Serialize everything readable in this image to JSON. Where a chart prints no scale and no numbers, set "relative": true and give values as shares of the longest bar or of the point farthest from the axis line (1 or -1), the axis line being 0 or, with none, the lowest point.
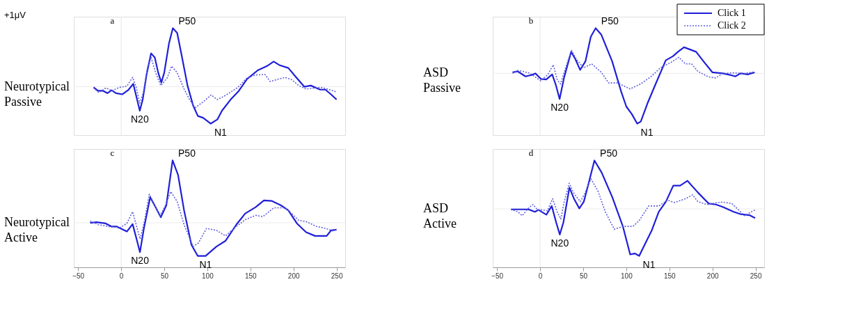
{
  "chart_data": [
    {
      "type": "line",
      "title": "Neurotypical Passive",
      "relative": true,
      "xlim": [
        -55,
        260
      ],
      "xticks": [
        -50,
        0,
        50,
        100,
        150,
        200,
        250
      ],
      "tick_labels": false,
      "grid": false,
      "legend": false,
      "annotations": [
        "+1μV",
        "a",
        {
          "text": "N20",
          "x": 21.6,
          "y": -0.41
        },
        {
          "text": "P50",
          "x": 60,
          "y": 1
        },
        {
          "text": "N1",
          "x": 104,
          "y": -0.63
        }
      ],
      "ref_lines": [
        {
          "axis": "x",
          "value": 0,
          "color": "#e6e6e6"
        }
      ],
      "series": [
        {
          "color": "#1f1fd8",
          "line_style": "solid",
          "x": [
            -32,
            -27,
            -21,
            -16,
            -11,
            -6,
            1.5,
            8.7,
            14,
            18,
            21.6,
            25,
            29.5,
            34.7,
            39,
            43,
            46.6,
            50,
            55.5,
            60,
            65,
            70,
            77,
            83.5,
            89,
            95,
            104,
            111.6,
            117,
            127,
            136.6,
            146,
            158.5,
            169,
            177,
            183.5,
            194,
            202,
            212.5,
            220,
            231,
            237,
            243.5,
            250
          ],
          "values": [
            -0.01,
            -0.07,
            -0.07,
            -0.11,
            -0.06,
            -0.11,
            -0.13,
            -0.05,
            0.05,
            -0.19,
            -0.41,
            -0.22,
            0.21,
            0.57,
            0.5,
            0.24,
            0.07,
            0.24,
            0.74,
            1,
            0.92,
            0.55,
            0.02,
            -0.32,
            -0.5,
            -0.53,
            -0.63,
            -0.56,
            -0.41,
            -0.22,
            -0.07,
            0.13,
            0.28,
            0.35,
            0.43,
            0.37,
            0.32,
            0.18,
            0,
            0.02,
            -0.05,
            -0.05,
            -0.13,
            -0.22
          ]
        },
        {
          "color": "#6060e0",
          "line_style": "dotted",
          "x": [
            -32,
            -26,
            -17.5,
            -11,
            -1.7,
            6.7,
            13.3,
            17.5,
            21.6,
            25.8,
            30.6,
            34.7,
            40,
            46,
            53.4,
            58.6,
            65,
            73,
            79.4,
            85.7,
            96,
            104.4,
            111.6,
            121,
            135.6,
            146,
            156,
            166.8,
            173,
            190,
            198,
            206,
            214.5,
            231,
            239.5,
            250
          ],
          "values": [
            -0.02,
            -0.1,
            -0.02,
            -0.07,
            -0.01,
            0.01,
            0.16,
            -0.01,
            -0.28,
            -0.1,
            0.33,
            0.5,
            0.24,
            0.02,
            0.15,
            0.35,
            0.24,
            -0.04,
            -0.22,
            -0.36,
            -0.25,
            -0.14,
            -0.22,
            -0.15,
            -0.01,
            0.15,
            0.2,
            0.21,
            0.09,
            0.16,
            0.12,
            0.02,
            -0.04,
            -0.01,
            -0.04,
            -0.09
          ]
        }
      ]
    },
    {
      "type": "line",
      "title": "ASD Passive",
      "relative": true,
      "xlim": [
        -55,
        260
      ],
      "xticks": [
        -50,
        0,
        50,
        100,
        150,
        200,
        250
      ],
      "tick_labels": false,
      "grid": false,
      "legend": "top right",
      "annotations": [
        "b",
        {
          "text": "N20",
          "x": 22.6,
          "y": -0.51
        },
        {
          "text": "P50",
          "x": 64.4,
          "y": 0.9
        },
        {
          "text": "N1",
          "x": 112.6,
          "y": -1
        }
      ],
      "ref_lines": [
        {
          "axis": "x",
          "value": 0,
          "color": "#e6e6e6"
        }
      ],
      "series": [
        {
          "name": "Click 1",
          "color": "#1f1fd8",
          "line_style": "solid",
          "x": [
            -32,
            -26,
            -17,
            -9.5,
            -5.4,
            0.8,
            7,
            14,
            18.4,
            22.6,
            27.7,
            36,
            41,
            46.4,
            52.6,
            58.8,
            64.4,
            71,
            83.6,
            94,
            100,
            106.4,
            112.6,
            116.8,
            125,
            133.3,
            145.8,
            154,
            160,
            167,
            181,
            189.6,
            200,
            212,
            220.3,
            226.5,
            232.6,
            241,
            249
          ],
          "values": [
            0.02,
            0.04,
            -0.06,
            -0.03,
            0,
            -0.11,
            -0.12,
            -0.02,
            -0.24,
            -0.51,
            -0.09,
            0.43,
            0.28,
            0.07,
            0.24,
            0.73,
            0.9,
            0.77,
            0.24,
            -0.36,
            -0.66,
            -0.81,
            -1,
            -0.96,
            -0.58,
            -0.24,
            0.26,
            0.34,
            0.43,
            0.52,
            0.43,
            0.24,
            0.02,
            0,
            -0.03,
            -0.06,
            0,
            -0.02,
            0.02
          ]
        },
        {
          "name": "Click 2",
          "color": "#6060e0",
          "line_style": "dotted",
          "x": [
            -32,
            -27,
            -20,
            -11.6,
            0.8,
            9,
            15.3,
            19.9,
            23.6,
            32,
            36.4,
            42,
            50.5,
            59.8,
            71,
            79.5,
            90,
            104.3,
            116.8,
            129,
            139.5,
            152,
            161,
            168.5,
            175.8,
            183,
            195.4,
            203.7,
            212,
            224.5,
            236.8,
            249
          ],
          "values": [
            0,
            0.06,
            0.04,
            0,
            -0.15,
            -0.02,
            0.17,
            -0.13,
            -0.21,
            0.24,
            0.46,
            0.28,
            0.11,
            0.19,
            0.02,
            -0.19,
            -0.19,
            -0.31,
            -0.21,
            -0.06,
            0.11,
            0.22,
            0.32,
            0.19,
            0.19,
            0.04,
            -0.07,
            -0.09,
            0,
            0.01,
            0,
            0.03
          ]
        }
      ]
    },
    {
      "type": "line",
      "title": "Neurotypical Active",
      "relative": true,
      "xlim": [
        -55,
        260
      ],
      "xticks": [
        -50,
        0,
        50,
        100,
        150,
        200,
        250
      ],
      "grid": false,
      "legend": false,
      "annotations": [
        "c",
        {
          "text": "N20",
          "x": 21.8,
          "y": -0.47
        },
        {
          "text": "P50",
          "x": 59.7,
          "y": 1
        },
        {
          "text": "N1",
          "x": 98,
          "y": -0.53
        }
      ],
      "ref_lines": [
        {
          "axis": "x",
          "value": 0,
          "color": "#e6e6e6"
        }
      ],
      "series": [
        {
          "color": "#1f1fd8",
          "line_style": "solid",
          "x": [
            -36,
            -28.5,
            -18,
            -11,
            -5,
            6.6,
            13.3,
            17.5,
            21.8,
            26.4,
            33.7,
            40,
            46,
            52.4,
            59.7,
            66,
            73,
            81.5,
            88.8,
            98,
            110.6,
            121,
            133.6,
            144,
            156,
            165.7,
            175,
            185.5,
            194,
            204,
            214.6,
            225,
            231,
            238.5,
            243.7,
            250
          ],
          "values": [
            0,
            0.01,
            -0.01,
            -0.06,
            -0.06,
            -0.14,
            -0.02,
            -0.24,
            -0.47,
            -0.09,
            0.41,
            0.25,
            0.09,
            0.28,
            1,
            0.77,
            0.2,
            -0.35,
            -0.53,
            -0.53,
            -0.38,
            -0.29,
            -0.03,
            0.15,
            0.25,
            0.36,
            0.35,
            0.28,
            0.2,
            -0.01,
            -0.15,
            -0.21,
            -0.21,
            -0.21,
            -0.12,
            -0.11
          ]
        },
        {
          "color": "#6060e0",
          "line_style": "dotted",
          "x": [
            -36,
            -26.6,
            -14,
            -1.7,
            6.6,
            13.3,
            18,
            22,
            27.4,
            32.6,
            38,
            45,
            52.4,
            57.6,
            65,
            73,
            83.6,
            89.8,
            99,
            110.6,
            121,
            133.6,
            144,
            156,
            164.6,
            177,
            189.6,
            198,
            206,
            214.6,
            227,
            235,
            245.7,
            250
          ],
          "values": [
            0.03,
            -0.03,
            -0.06,
            -0.08,
            -0.01,
            0.18,
            -0.06,
            -0.26,
            0.05,
            0.46,
            0.31,
            0.11,
            0.31,
            0.5,
            0.34,
            -0.03,
            -0.38,
            -0.32,
            -0.09,
            -0.12,
            -0.21,
            -0.06,
            0.05,
            0.12,
            0.1,
            0.24,
            0.24,
            0.15,
            0.04,
            0.02,
            -0.06,
            -0.08,
            -0.13,
            -0.11
          ]
        }
      ]
    },
    {
      "type": "line",
      "title": "ASD Active",
      "relative": true,
      "xlim": [
        -55,
        260
      ],
      "xticks": [
        -50,
        0,
        50,
        100,
        150,
        200,
        250
      ],
      "grid": false,
      "legend": false,
      "annotations": [
        "d",
        {
          "text": "N20",
          "x": 22.8,
          "y": -0.53
        },
        {
          "text": "P50",
          "x": 63,
          "y": 1
        },
        {
          "text": "N1",
          "x": 115,
          "y": -0.97
        }
      ],
      "ref_lines": [
        {
          "axis": "x",
          "value": 0,
          "color": "#e6e6e6"
        }
      ],
      "series": [
        {
          "color": "#1f1fd8",
          "line_style": "solid",
          "x": [
            -34,
            -24,
            -13.5,
            -6,
            -2,
            7.2,
            13.5,
            18.6,
            22.8,
            27,
            34,
            39.3,
            45.5,
            50.7,
            57,
            63,
            71.4,
            83.8,
            96,
            104.5,
            109.7,
            115,
            121,
            129.4,
            137.7,
            146,
            154.5,
            162.5,
            171,
            183,
            195.7,
            204,
            212,
            224.6,
            233,
            243,
            249.5
          ],
          "values": [
            -0.01,
            -0.01,
            -0.01,
            -0.06,
            -0.02,
            -0.12,
            0.06,
            -0.28,
            -0.53,
            -0.28,
            0.44,
            0.21,
            0.01,
            0.15,
            0.58,
            1,
            0.75,
            0.24,
            -0.36,
            -0.94,
            -0.92,
            -0.97,
            -0.75,
            -0.45,
            -0.06,
            0.15,
            0.48,
            0.48,
            0.58,
            0.34,
            0.11,
            0.09,
            0.04,
            -0.06,
            -0.11,
            -0.13,
            -0.19
          ]
        },
        {
          "color": "#6060e0",
          "line_style": "dotted",
          "x": [
            -34,
            -26,
            -20.7,
            -14.5,
            -8.3,
            -3,
            3,
            8.3,
            14.5,
            19.7,
            24,
            28,
            33.7,
            39.3,
            46.6,
            51.8,
            59,
            67.3,
            75.6,
            86,
            96.3,
            107.7,
            115,
            126,
            137.7,
            148,
            156,
            168.7,
            177,
            183,
            193.4,
            206,
            212,
            222.5,
            229,
            237,
            249.5
          ],
          "values": [
            -0.01,
            -0.06,
            -0.14,
            0,
            0.09,
            -0.02,
            -0.02,
            -0.04,
            0.21,
            -0.06,
            -0.21,
            0.15,
            0.53,
            0.32,
            0.15,
            0.32,
            0.62,
            0.36,
            -0.06,
            -0.42,
            -0.36,
            -0.36,
            -0.24,
            0.06,
            0.06,
            0.18,
            0.13,
            0.21,
            0.29,
            0.15,
            0.09,
            0.13,
            0.14,
            0.11,
            0,
            -0.14,
            -0.02
          ]
        }
      ]
    }
  ]
}
